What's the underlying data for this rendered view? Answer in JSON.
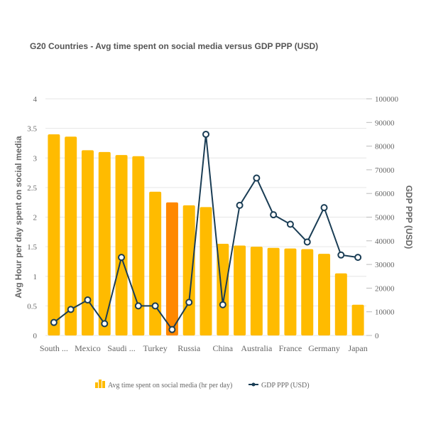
{
  "chart_data": {
    "type": "bar",
    "title": "G20 Countries - Avg time spent on social media versus GDP PPP (USD)",
    "categories": [
      "South ...",
      "",
      "Mexico",
      "",
      "Saudi ...",
      "",
      "Turkey",
      "",
      "Russia",
      "",
      "China",
      "",
      "Australia",
      "",
      "France",
      "",
      "Germany",
      "",
      "Japan"
    ],
    "series": [
      {
        "name": "Avg time spent on social media (hr per day)",
        "type": "bar",
        "axis": "left",
        "values": [
          3.4,
          3.36,
          3.13,
          3.1,
          3.05,
          3.03,
          2.43,
          2.25,
          2.2,
          2.17,
          1.55,
          1.52,
          1.5,
          1.48,
          1.47,
          1.46,
          1.38,
          1.05,
          0.52
        ],
        "highlight_index": 7
      },
      {
        "name": "GDP PPP (USD)",
        "type": "line",
        "axis": "right",
        "values": [
          5500,
          11000,
          15000,
          5000,
          33000,
          12500,
          12500,
          2500,
          14000,
          85000,
          13000,
          55000,
          66500,
          51000,
          47000,
          39500,
          54000,
          34000,
          33000
        ]
      }
    ],
    "y_left": {
      "label": "Avg Hour per day spent on social media",
      "min": 0,
      "max": 4,
      "ticks": [
        0,
        0.5,
        1,
        1.5,
        2,
        2.5,
        3,
        3.5,
        4
      ]
    },
    "y_right": {
      "label": "GDP PPP (USD)",
      "min": 0,
      "max": 100000,
      "ticks": [
        0,
        10000,
        20000,
        30000,
        40000,
        50000,
        60000,
        70000,
        80000,
        90000,
        100000
      ]
    },
    "grid": true,
    "legend": "bottom-center",
    "colors": {
      "bar": "#FFBB00",
      "bar_highlight": "#FF8800",
      "line": "#1A3D55",
      "marker_fill": "#ffffff",
      "grid": "#E6E6E6",
      "axis_text": "#666666",
      "title": "#555555"
    }
  }
}
